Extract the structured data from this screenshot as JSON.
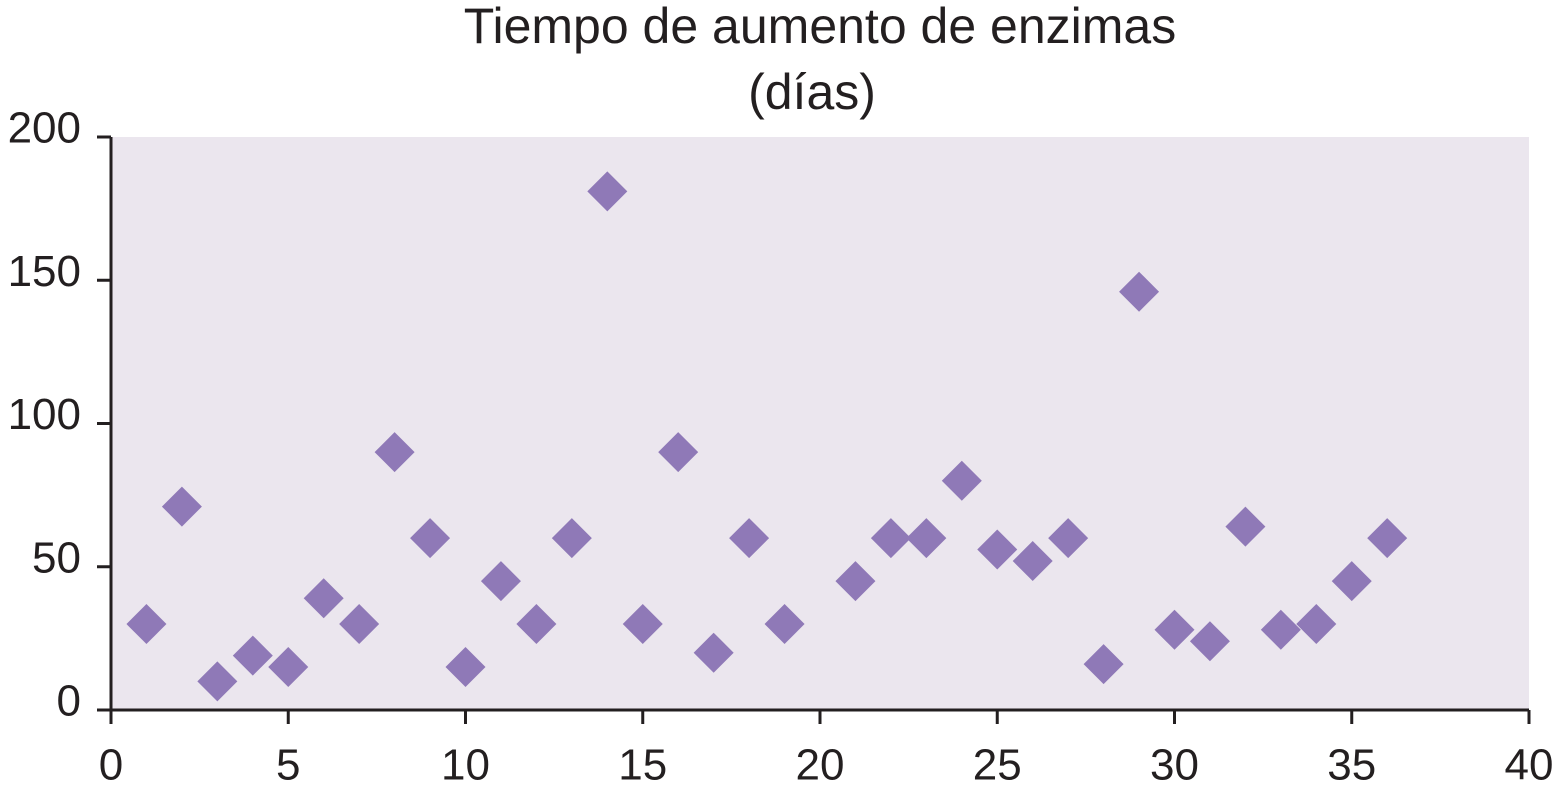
{
  "chart_data": {
    "type": "scatter",
    "title": [
      "Tiempo de aumento de enzimas",
      "(días)"
    ],
    "series": [
      {
        "color": "#8f79b7",
        "x": [
          1,
          2,
          3,
          4,
          5,
          6,
          7,
          8,
          9,
          10,
          11,
          12,
          13,
          14,
          15,
          16,
          17,
          18,
          19,
          21,
          22,
          23,
          24,
          25,
          26,
          27,
          28,
          29,
          30,
          31,
          32,
          33,
          34,
          35,
          36
        ],
        "values": [
          30,
          71,
          10,
          19,
          15,
          39,
          30,
          90,
          60,
          15,
          45,
          30,
          60,
          181,
          30,
          90,
          20,
          60,
          30,
          45,
          60,
          60,
          80,
          56,
          52,
          60,
          16,
          146,
          28,
          24,
          64,
          28,
          30,
          45,
          60
        ]
      }
    ],
    "xlim": [
      0,
      40
    ],
    "xticks": [
      0,
      5,
      10,
      15,
      20,
      25,
      30,
      35,
      40
    ],
    "ylim": [
      0,
      200
    ],
    "yticks": [
      0,
      50,
      100,
      150,
      200
    ],
    "plot_background": "#ebe6ee"
  }
}
